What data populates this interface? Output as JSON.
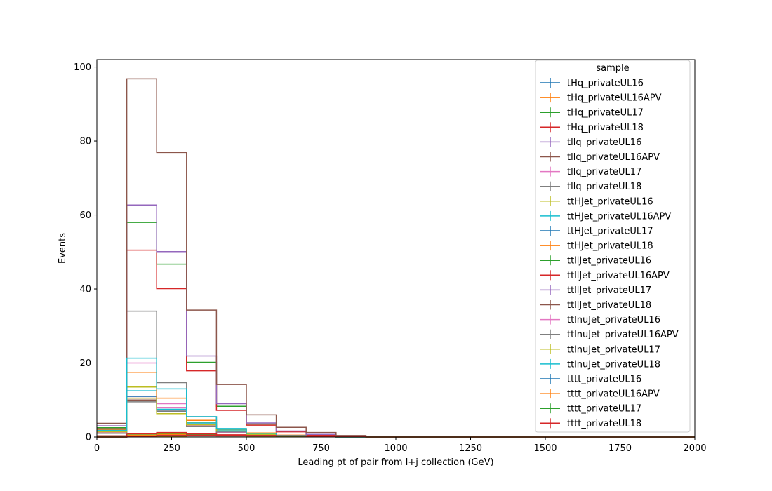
{
  "chart_data": {
    "type": "histogram",
    "xlabel": "Leading pt of pair from l+j collection (GeV)",
    "ylabel": "Events",
    "xlim": [
      0,
      2000
    ],
    "ylim": [
      0,
      102
    ],
    "x_ticks": [
      0,
      250,
      500,
      750,
      1000,
      1250,
      1500,
      1750,
      2000
    ],
    "y_ticks": [
      0,
      20,
      40,
      60,
      80,
      100
    ],
    "grid": false,
    "legend": {
      "title": "sample",
      "placement": "top-right"
    },
    "bin_edges": [
      0,
      100,
      200,
      300,
      400,
      500,
      600,
      700,
      800,
      900,
      1000,
      1100,
      1200,
      1300,
      1400,
      1500,
      1600,
      1700,
      1800,
      1900,
      2000
    ],
    "series": [
      {
        "name": "tHq_privateUL16",
        "color": "#1f77b4",
        "values": [
          0.2,
          0.4,
          0.6,
          0.5,
          0.3,
          0.2,
          0.1,
          0.05,
          0,
          0,
          0,
          0,
          0,
          0,
          0,
          0,
          0,
          0,
          0,
          0
        ]
      },
      {
        "name": "tHq_privateUL16APV",
        "color": "#ff7f0e",
        "values": [
          0.2,
          0.5,
          0.7,
          0.5,
          0.3,
          0.2,
          0.1,
          0.05,
          0,
          0,
          0,
          0,
          0,
          0,
          0,
          0,
          0,
          0,
          0,
          0
        ]
      },
      {
        "name": "tHq_privateUL17",
        "color": "#2ca02c",
        "values": [
          0.3,
          0.8,
          1.0,
          0.8,
          0.5,
          0.3,
          0.15,
          0.05,
          0,
          0,
          0,
          0,
          0,
          0,
          0,
          0,
          0,
          0,
          0,
          0
        ]
      },
      {
        "name": "tHq_privateUL18",
        "color": "#d62728",
        "values": [
          0.3,
          0.9,
          1.2,
          0.9,
          0.6,
          0.35,
          0.15,
          0.05,
          0,
          0,
          0,
          0,
          0,
          0,
          0,
          0,
          0,
          0,
          0,
          0
        ]
      },
      {
        "name": "tllq_privateUL16",
        "color": "#9467bd",
        "values": [
          1.5,
          11.0,
          7.5,
          3.0,
          1.2,
          0.5,
          0.2,
          0.1,
          0,
          0,
          0,
          0,
          0,
          0,
          0,
          0,
          0,
          0,
          0,
          0
        ]
      },
      {
        "name": "tllq_privateUL16APV",
        "color": "#8c564b",
        "values": [
          1.4,
          10.0,
          7.0,
          2.8,
          1.1,
          0.5,
          0.2,
          0.1,
          0,
          0,
          0,
          0,
          0,
          0,
          0,
          0,
          0,
          0,
          0,
          0
        ]
      },
      {
        "name": "tllq_privateUL17",
        "color": "#e377c2",
        "values": [
          2.5,
          20.0,
          9.0,
          3.5,
          1.5,
          0.6,
          0.2,
          0.1,
          0,
          0,
          0,
          0,
          0,
          0,
          0,
          0,
          0,
          0,
          0,
          0
        ]
      },
      {
        "name": "tllq_privateUL18",
        "color": "#7f7f7f",
        "values": [
          3.0,
          34.0,
          14.7,
          5.5,
          2.0,
          0.8,
          0.3,
          0.1,
          0,
          0,
          0,
          0,
          0,
          0,
          0,
          0,
          0,
          0,
          0,
          0
        ]
      },
      {
        "name": "ttHJet_privateUL16",
        "color": "#bcbd22",
        "values": [
          1.5,
          13.5,
          8.0,
          4.0,
          2.0,
          1.0,
          0.4,
          0.2,
          0.1,
          0,
          0,
          0,
          0,
          0,
          0,
          0,
          0,
          0,
          0,
          0
        ]
      },
      {
        "name": "ttHJet_privateUL16APV",
        "color": "#17becf",
        "values": [
          1.3,
          12.5,
          7.5,
          3.8,
          1.9,
          0.9,
          0.4,
          0.2,
          0.1,
          0,
          0,
          0,
          0,
          0,
          0,
          0,
          0,
          0,
          0,
          0
        ]
      },
      {
        "name": "ttHJet_privateUL17",
        "color": "#1f77b4",
        "values": [
          1.6,
          11.0,
          7.0,
          3.0,
          1.5,
          0.8,
          0.4,
          0.2,
          0.1,
          0,
          0,
          0,
          0,
          0,
          0,
          0,
          0,
          0,
          0,
          0
        ]
      },
      {
        "name": "ttHJet_privateUL18",
        "color": "#ff7f0e",
        "values": [
          2.0,
          17.5,
          10.5,
          4.5,
          2.2,
          1.1,
          0.5,
          0.2,
          0.1,
          0,
          0,
          0,
          0,
          0,
          0,
          0,
          0,
          0,
          0,
          0
        ]
      },
      {
        "name": "ttllJet_privateUL16",
        "color": "#2ca02c",
        "values": [
          2.5,
          58.0,
          46.7,
          20.2,
          8.3,
          3.5,
          1.5,
          0.6,
          0.2,
          0,
          0,
          0,
          0,
          0,
          0,
          0,
          0,
          0,
          0,
          0
        ]
      },
      {
        "name": "ttllJet_privateUL16APV",
        "color": "#d62728",
        "values": [
          2.2,
          50.5,
          40.1,
          17.9,
          7.2,
          3.2,
          1.4,
          0.5,
          0.2,
          0,
          0,
          0,
          0,
          0,
          0,
          0,
          0,
          0,
          0,
          0
        ]
      },
      {
        "name": "ttllJet_privateUL17",
        "color": "#9467bd",
        "values": [
          3.0,
          62.7,
          50.1,
          21.9,
          9.0,
          3.8,
          1.6,
          0.7,
          0.3,
          0,
          0,
          0,
          0,
          0,
          0,
          0,
          0,
          0,
          0,
          0
        ]
      },
      {
        "name": "ttllJet_privateUL18",
        "color": "#8c564b",
        "values": [
          3.7,
          96.8,
          76.9,
          34.3,
          14.2,
          6.0,
          2.6,
          1.2,
          0.4,
          0,
          0,
          0,
          0,
          0,
          0,
          0,
          0,
          0,
          0,
          0
        ]
      },
      {
        "name": "ttlnuJet_privateUL16",
        "color": "#e377c2",
        "values": [
          1.2,
          10.5,
          8.0,
          3.0,
          1.2,
          0.5,
          0.2,
          0.1,
          0,
          0,
          0,
          0,
          0,
          0,
          0,
          0,
          0,
          0,
          0,
          0
        ]
      },
      {
        "name": "ttlnuJet_privateUL16APV",
        "color": "#7f7f7f",
        "values": [
          1.0,
          9.5,
          7.0,
          2.8,
          1.1,
          0.5,
          0.2,
          0.1,
          0,
          0,
          0,
          0,
          0,
          0,
          0,
          0,
          0,
          0,
          0,
          0
        ]
      },
      {
        "name": "ttlnuJet_privateUL17",
        "color": "#bcbd22",
        "values": [
          1.4,
          10.5,
          6.3,
          3.3,
          1.6,
          0.7,
          0.3,
          0.1,
          0,
          0,
          0,
          0,
          0,
          0,
          0,
          0,
          0,
          0,
          0,
          0
        ]
      },
      {
        "name": "ttlnuJet_privateUL18",
        "color": "#17becf",
        "values": [
          1.8,
          21.3,
          13.0,
          5.5,
          2.3,
          1.0,
          0.4,
          0.1,
          0,
          0,
          0,
          0,
          0,
          0,
          0,
          0,
          0,
          0,
          0,
          0
        ]
      },
      {
        "name": "tttt_privateUL16",
        "color": "#1f77b4",
        "values": [
          0,
          0.1,
          0.2,
          0.3,
          0.3,
          0.3,
          0.2,
          0.1,
          0.05,
          0,
          0,
          0,
          0,
          0,
          0,
          0,
          0,
          0,
          0,
          0
        ]
      },
      {
        "name": "tttt_privateUL16APV",
        "color": "#ff7f0e",
        "values": [
          0,
          0.1,
          0.2,
          0.3,
          0.3,
          0.3,
          0.2,
          0.1,
          0.05,
          0,
          0,
          0,
          0,
          0,
          0,
          0,
          0,
          0,
          0,
          0
        ]
      },
      {
        "name": "tttt_privateUL17",
        "color": "#2ca02c",
        "values": [
          0,
          0.15,
          0.3,
          0.4,
          0.4,
          0.35,
          0.25,
          0.1,
          0.05,
          0,
          0,
          0,
          0,
          0,
          0,
          0,
          0,
          0,
          0,
          0
        ]
      },
      {
        "name": "tttt_privateUL18",
        "color": "#d62728",
        "values": [
          0,
          0.2,
          0.4,
          0.5,
          0.5,
          0.4,
          0.3,
          0.15,
          0.05,
          0,
          0,
          0,
          0,
          0,
          0,
          0,
          0,
          0,
          0,
          0
        ]
      }
    ]
  }
}
